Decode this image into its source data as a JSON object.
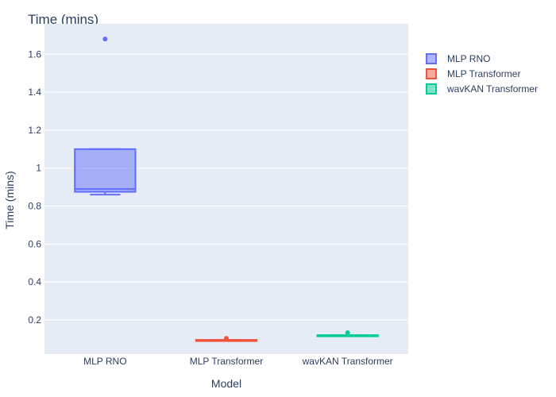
{
  "chart_data": {
    "type": "box",
    "title": "Time (mins)",
    "xlabel": "Model",
    "ylabel": "Time (mins)",
    "categories": [
      "MLP RNO",
      "MLP Transformer",
      "wavKAN Transformer"
    ],
    "yticks": [
      "0.2",
      "0.4",
      "0.6",
      "0.8",
      "1",
      "1.2",
      "1.4",
      "1.6"
    ],
    "ylim": [
      0.02,
      1.76
    ],
    "grid": true,
    "legend_position": "top-right",
    "series": [
      {
        "name": "MLP RNO",
        "color": "#636efa",
        "min": 0.86,
        "q1": 0.875,
        "median": 0.89,
        "q3": 1.1,
        "max": 1.1,
        "outliers": [
          1.68
        ]
      },
      {
        "name": "MLP Transformer",
        "color": "#ef553b",
        "min": 0.09,
        "q1": 0.09,
        "median": 0.092,
        "q3": 0.095,
        "max": 0.095,
        "outliers": [
          0.103
        ]
      },
      {
        "name": "wavKAN Transformer",
        "color": "#00cc96",
        "min": 0.115,
        "q1": 0.115,
        "median": 0.117,
        "q3": 0.12,
        "max": 0.12,
        "outliers": [
          0.133
        ]
      }
    ]
  }
}
